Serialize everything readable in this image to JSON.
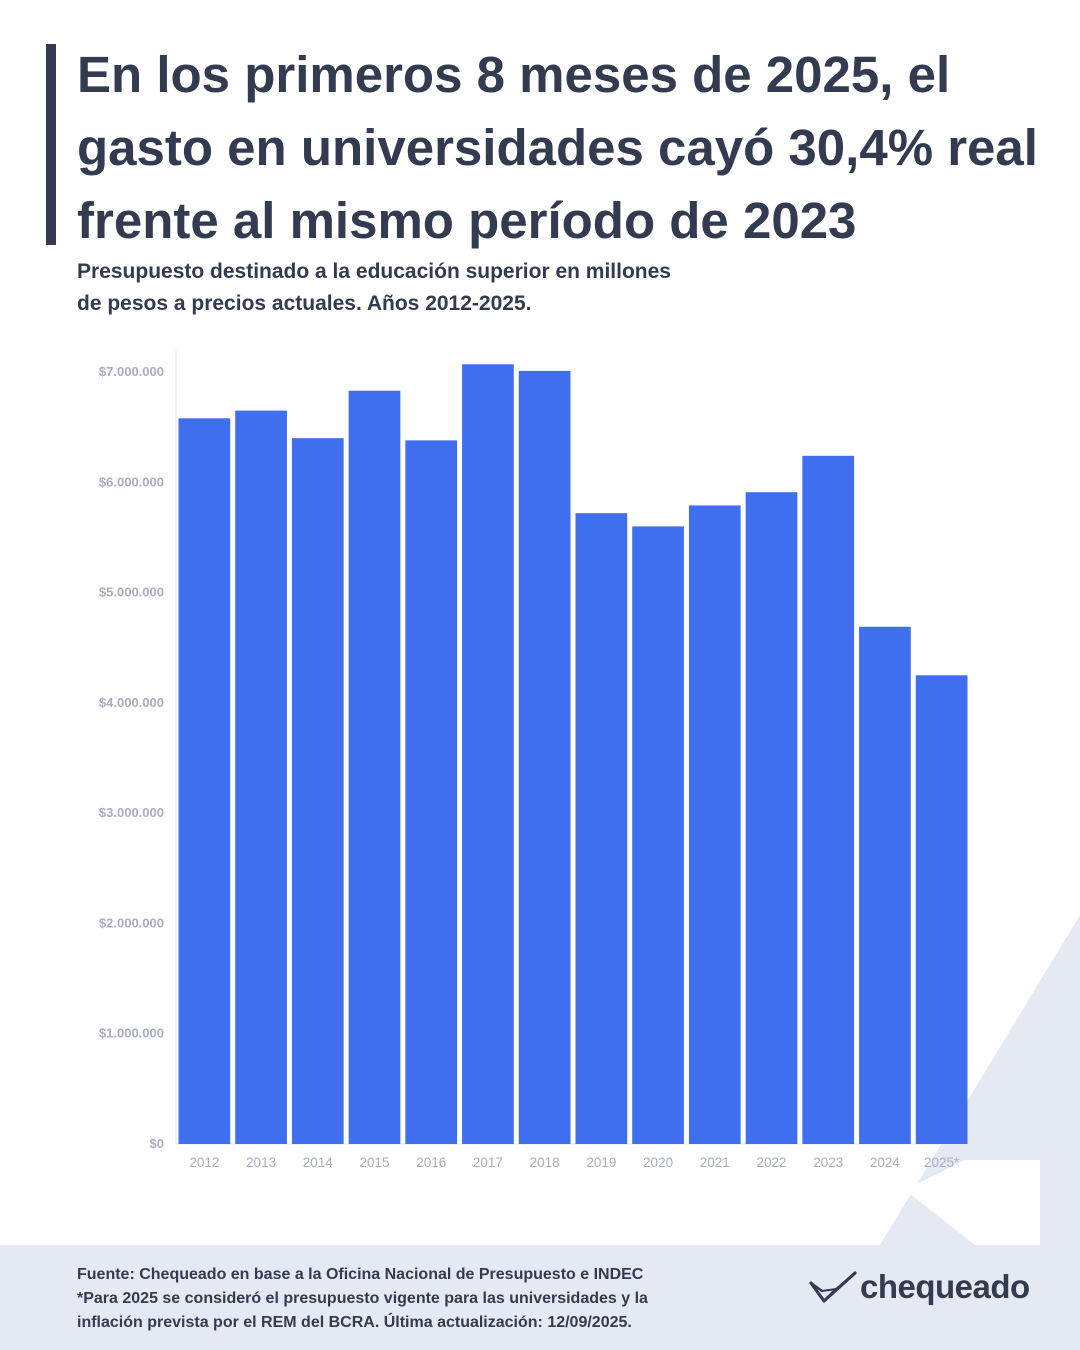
{
  "title": "En los primeros 8 meses de 2025, el gasto en universidades cayó 30,4% real frente al mismo período de 2023",
  "subtitle_lines": [
    "Presupuesto destinado a la educación superior en millones",
    "de pesos a precios actuales. Años 2012-2025."
  ],
  "colors": {
    "bar": "#3f6fef",
    "text": "#333b50",
    "axis_text": "#a9adc0",
    "footer_bg": "#e4e9f3",
    "decor": "#e4e9f3"
  },
  "chart_data": {
    "type": "bar",
    "categories": [
      "2012",
      "2013",
      "2014",
      "2015",
      "2016",
      "2017",
      "2018",
      "2019",
      "2020",
      "2021",
      "2022",
      "2023",
      "2024",
      "2025*"
    ],
    "values": [
      6580000,
      6650000,
      6400000,
      6830000,
      6380000,
      7070000,
      7010000,
      5720000,
      5600000,
      5790000,
      5910000,
      6240000,
      4690000,
      4250000
    ],
    "ylim": [
      0,
      7000000
    ],
    "yticks": [
      0,
      1000000,
      2000000,
      3000000,
      4000000,
      5000000,
      6000000,
      7000000
    ],
    "ytick_labels": [
      "$0",
      "$1.000.000",
      "$2.000.000",
      "$3.000.000",
      "$4.000.000",
      "$5.000.000",
      "$6.000.000",
      "$7.000.000"
    ],
    "grid": false,
    "legend": "none"
  },
  "footer": {
    "lines": [
      "Fuente: Chequeado en base a la Oficina Nacional de Presupuesto e INDEC",
      "*Para 2025 se consideró el presupuesto vigente para las universidades y la",
      "inflación prevista por el REM del BCRA. Última actualización: 12/09/2025."
    ],
    "logo_text": "chequeado"
  }
}
